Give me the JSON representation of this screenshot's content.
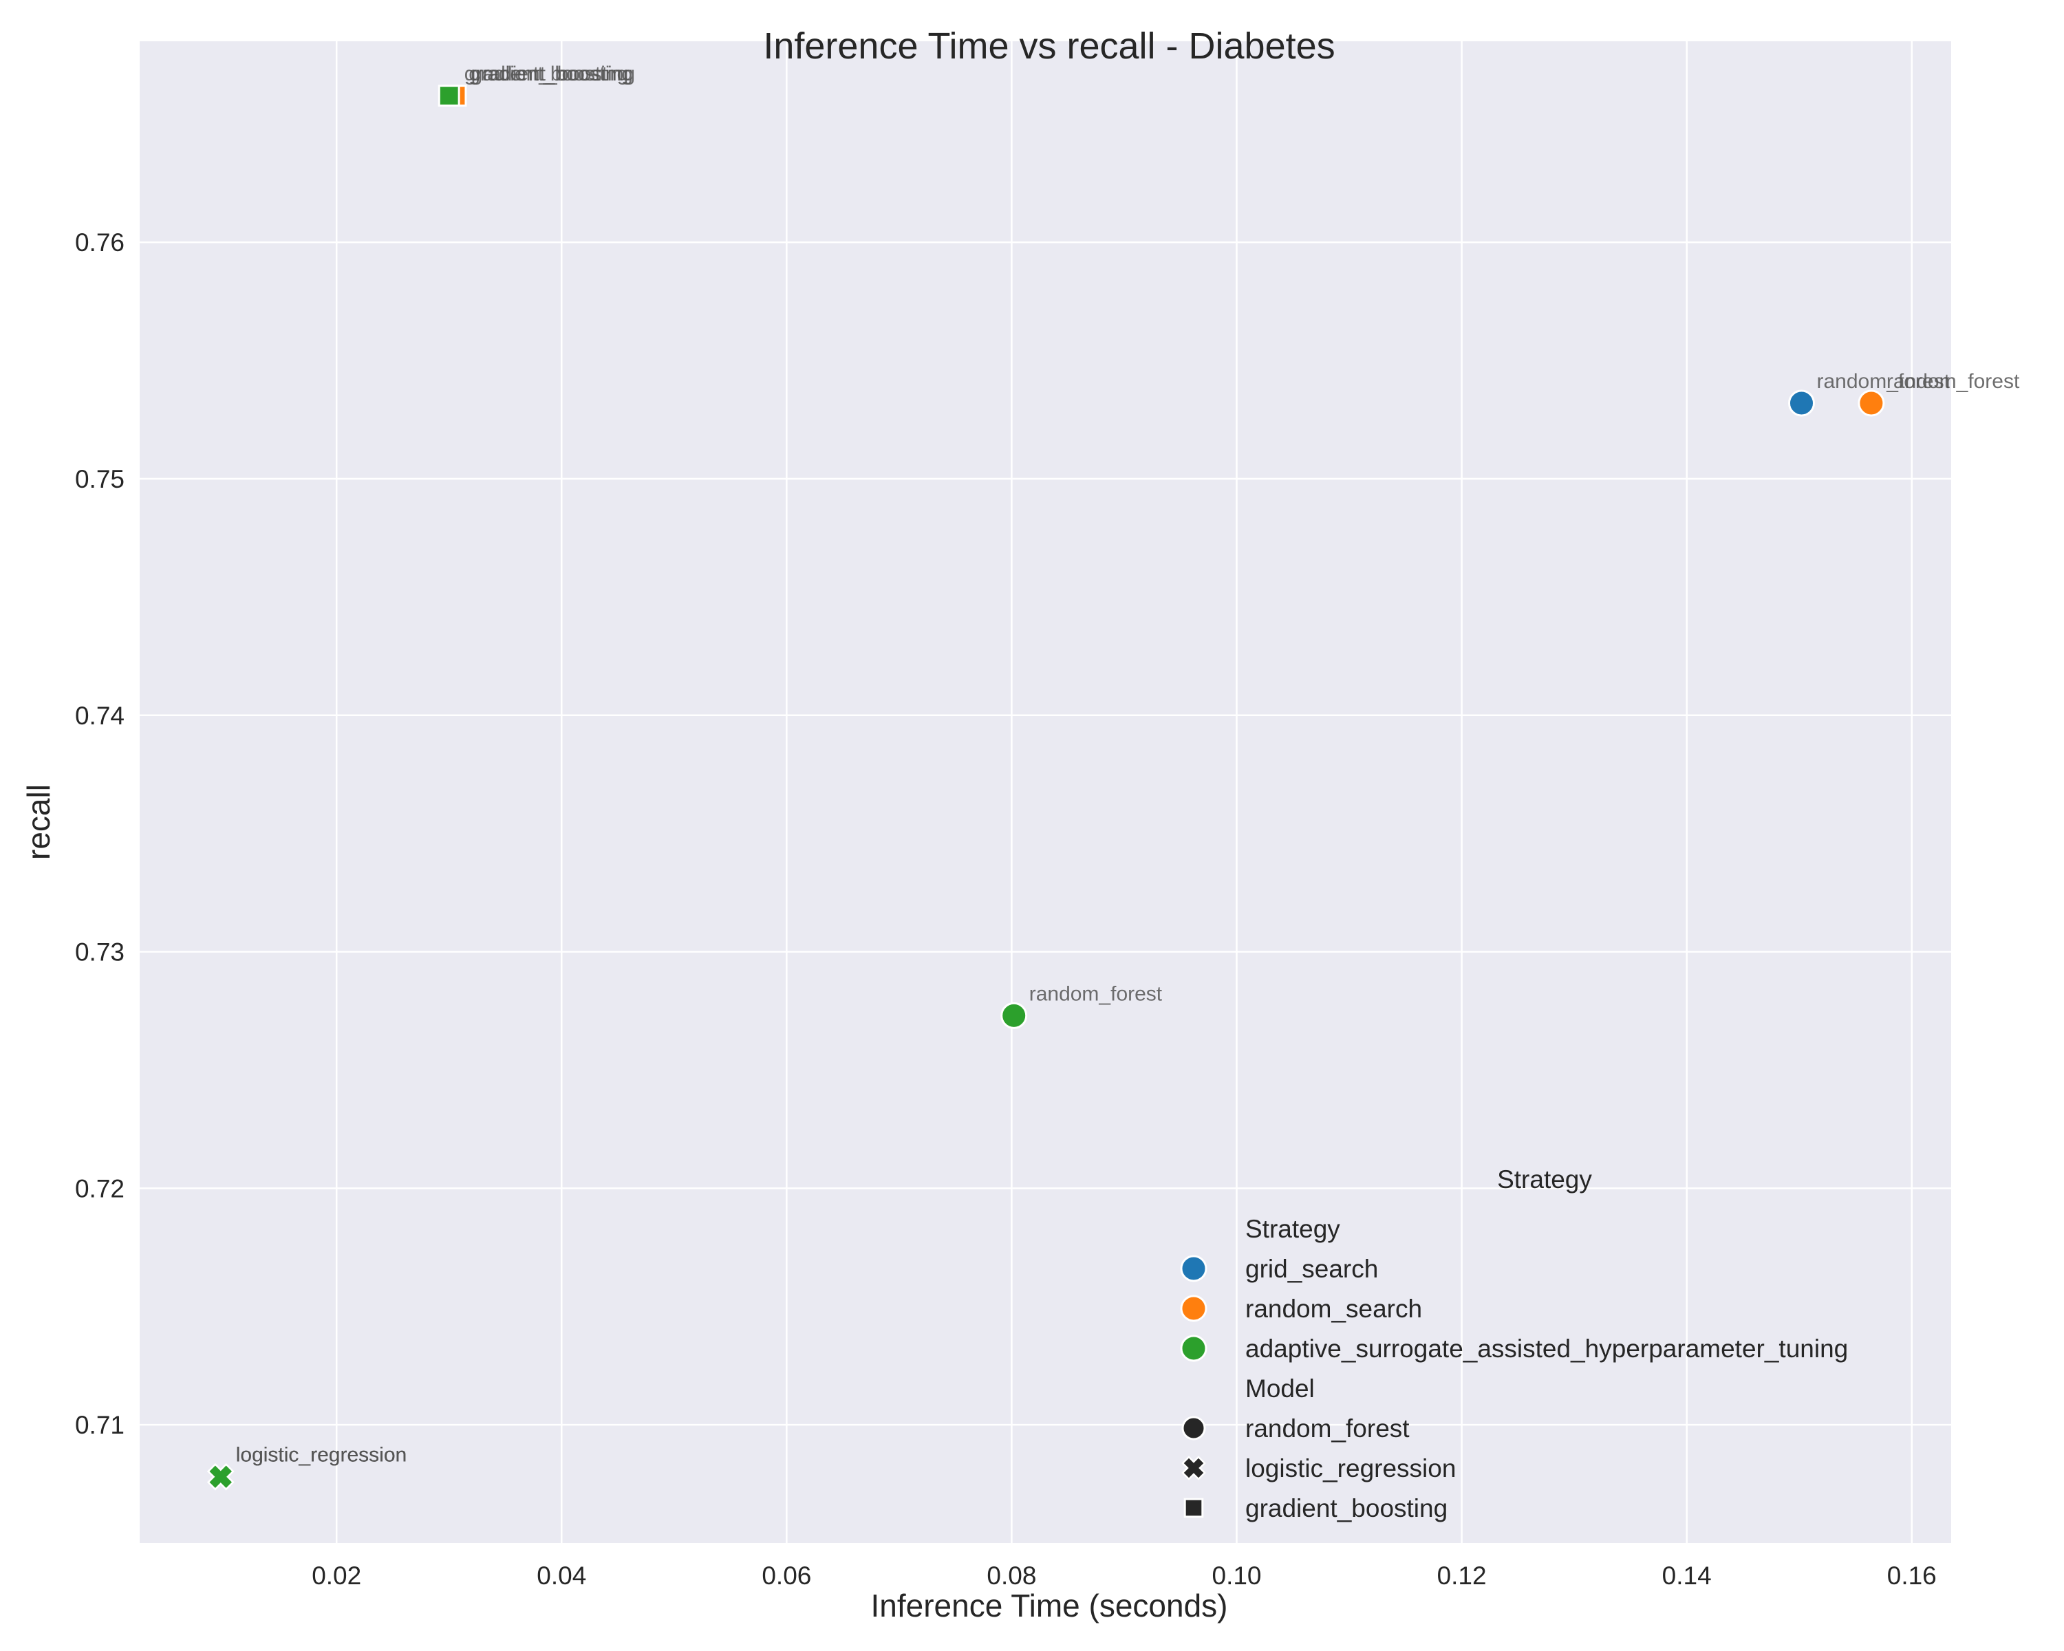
{
  "chart_data": {
    "type": "scatter",
    "title": "Inference Time vs recall - Diabetes",
    "xlabel": "Inference Time (seconds)",
    "ylabel": "recall",
    "xlim": [
      0.0025,
      0.1635
    ],
    "ylim": [
      0.705,
      0.7685
    ],
    "xticks": [
      0.02,
      0.04,
      0.06,
      0.08,
      0.1,
      0.12,
      0.14,
      0.16
    ],
    "xtick_labels": [
      "0.02",
      "0.04",
      "0.06",
      "0.08",
      "0.10",
      "0.12",
      "0.14",
      "0.16"
    ],
    "yticks": [
      0.71,
      0.72,
      0.73,
      0.74,
      0.75,
      0.76
    ],
    "ytick_labels": [
      "0.71",
      "0.72",
      "0.73",
      "0.74",
      "0.75",
      "0.76"
    ],
    "grid": true,
    "legend_position": "lower-right",
    "strategy_colors": {
      "grid_search": "#1f77b4",
      "random_search": "#ff7f0e",
      "adaptive_surrogate_assisted_hyperparameter_tuning": "#2ca02c"
    },
    "model_markers": {
      "random_forest": "circle",
      "logistic_regression": "x",
      "gradient_boosting": "square"
    },
    "points": [
      {
        "strategy": "grid_search",
        "model": "logistic_regression",
        "x": 0.0097,
        "y": 0.7078,
        "label": "logistic_regression"
      },
      {
        "strategy": "random_search",
        "model": "logistic_regression",
        "x": 0.0097,
        "y": 0.7078,
        "label": "logistic_regression"
      },
      {
        "strategy": "adaptive_surrogate_assisted_hyperparameter_tuning",
        "model": "logistic_regression",
        "x": 0.0097,
        "y": 0.7078,
        "label": "logistic_regression"
      },
      {
        "strategy": "grid_search",
        "model": "gradient_boosting",
        "x": 0.0304,
        "y": 0.7662,
        "label": "gradient_boosting"
      },
      {
        "strategy": "random_search",
        "model": "gradient_boosting",
        "x": 0.0306,
        "y": 0.7662,
        "label": "gradient_boosting"
      },
      {
        "strategy": "adaptive_surrogate_assisted_hyperparameter_tuning",
        "model": "gradient_boosting",
        "x": 0.03,
        "y": 0.7662,
        "label": "gradient_boosting"
      },
      {
        "strategy": "grid_search",
        "model": "random_forest",
        "x": 0.1502,
        "y": 0.7532,
        "label": "random_forest"
      },
      {
        "strategy": "random_search",
        "model": "random_forest",
        "x": 0.1564,
        "y": 0.7532,
        "label": "random_forest"
      },
      {
        "strategy": "adaptive_surrogate_assisted_hyperparameter_tuning",
        "model": "random_forest",
        "x": 0.0802,
        "y": 0.7273,
        "label": "random_forest"
      }
    ],
    "legend_outer_title": "Strategy",
    "legend": {
      "strategy_title": "Strategy",
      "strategies": [
        "grid_search",
        "random_search",
        "adaptive_surrogate_assisted_hyperparameter_tuning"
      ],
      "model_title": "Model",
      "models": [
        "random_forest",
        "logistic_regression",
        "gradient_boosting"
      ]
    }
  }
}
